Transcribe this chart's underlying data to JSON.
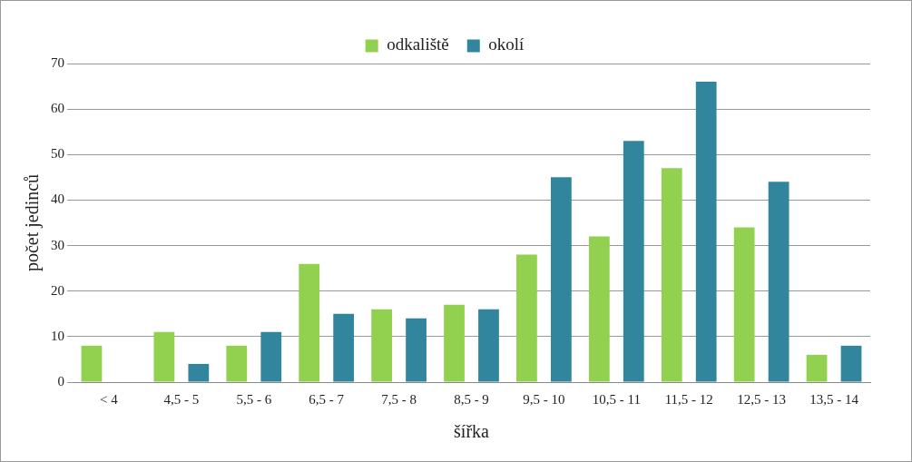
{
  "chart_data": {
    "type": "bar",
    "xlabel": "šířka",
    "ylabel": "počet jedinců",
    "categories": [
      "< 4",
      "4,5 - 5",
      "5,5 - 6",
      "6,5 - 7",
      "7,5 - 8",
      "8,5 - 9",
      "9,5 - 10",
      "10,5 - 11",
      "11,5 - 12",
      "12,5 - 13",
      "13,5 - 14"
    ],
    "series": [
      {
        "name": "odkaliště",
        "color": "#92d050",
        "values": [
          8,
          11,
          8,
          26,
          16,
          17,
          28,
          32,
          47,
          34,
          6
        ]
      },
      {
        "name": "okolí",
        "color": "#31859c",
        "values": [
          null,
          4,
          11,
          15,
          14,
          16,
          45,
          53,
          66,
          44,
          8
        ]
      }
    ],
    "ylim": [
      0,
      70
    ],
    "yticks": [
      0,
      10,
      20,
      30,
      40,
      50,
      60,
      70
    ],
    "grid": "y",
    "legend": "top"
  }
}
